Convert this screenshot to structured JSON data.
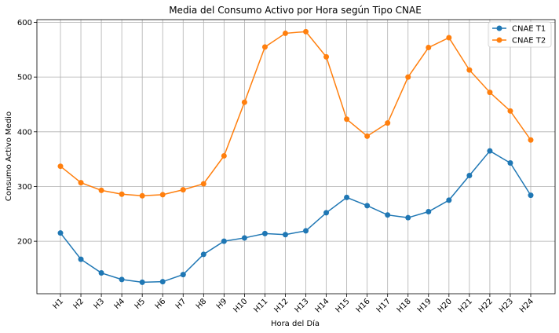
{
  "chart_data": {
    "type": "line",
    "title": "Media del Consumo Activo por Hora según Tipo CNAE",
    "xlabel": "Hora del Día",
    "ylabel": "Consumo Activo Medio",
    "categories": [
      "H1",
      "H2",
      "H3",
      "H4",
      "H5",
      "H6",
      "H7",
      "H8",
      "H9",
      "H10",
      "H11",
      "H12",
      "H13",
      "H14",
      "H15",
      "H16",
      "H17",
      "H18",
      "H19",
      "H20",
      "H21",
      "H22",
      "H23",
      "H24"
    ],
    "yticks": [
      200,
      300,
      400,
      500,
      600
    ],
    "ylim": [
      104,
      605
    ],
    "grid": true,
    "legend_position": "top-right",
    "series": [
      {
        "name": "CNAE T1",
        "color": "#1f77b4",
        "values": [
          215,
          167,
          142,
          130,
          125,
          126,
          139,
          176,
          200,
          206,
          214,
          212,
          219,
          252,
          280,
          265,
          248,
          243,
          254,
          275,
          320,
          365,
          343,
          284
        ]
      },
      {
        "name": "CNAE T2",
        "color": "#ff7f0e",
        "values": [
          337,
          307,
          293,
          286,
          283,
          285,
          294,
          305,
          356,
          454,
          555,
          580,
          583,
          537,
          423,
          392,
          416,
          500,
          554,
          572,
          513,
          472,
          438,
          385
        ]
      }
    ]
  }
}
